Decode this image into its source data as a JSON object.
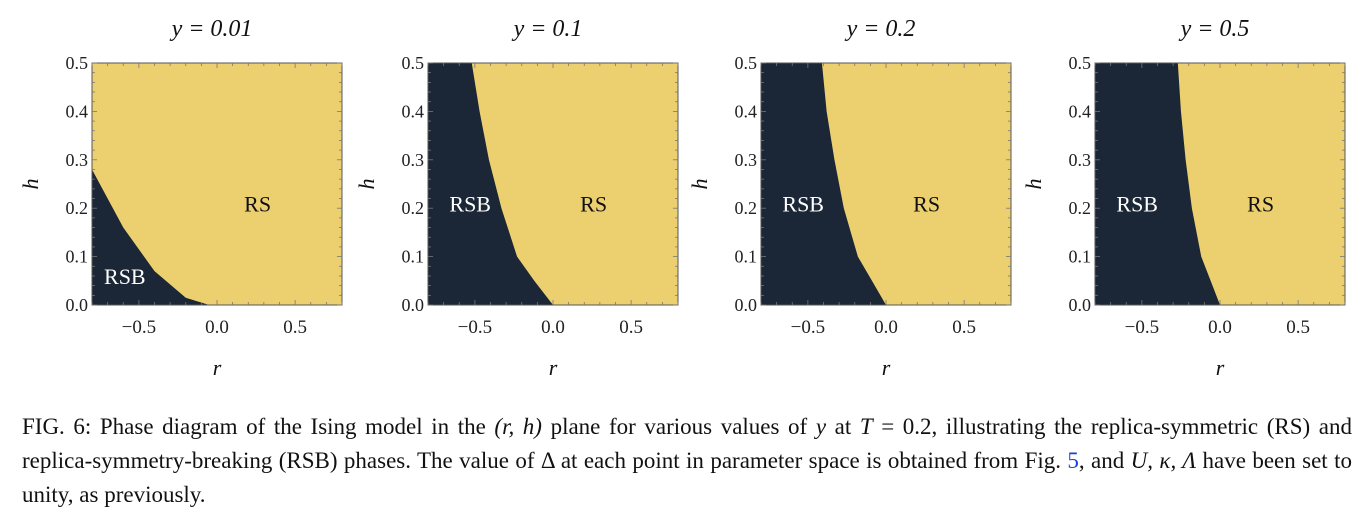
{
  "colors": {
    "RS": "#ecd070",
    "RSB": "#1b2636",
    "axis": "#555555",
    "ref_link": "#1a3fd6"
  },
  "chart_data": [
    {
      "type": "heatmap",
      "title": "y = 0.01",
      "xlabel": "r",
      "ylabel": "h",
      "xlim": [
        -0.8,
        0.8
      ],
      "ylim": [
        0.0,
        0.5
      ],
      "xticks": [
        "−0.5",
        "0.0",
        "0.5"
      ],
      "xtick_values": [
        -0.5,
        0.0,
        0.5
      ],
      "yticks": [
        "0.0",
        "0.1",
        "0.2",
        "0.3",
        "0.4",
        "0.5"
      ],
      "ytick_values": [
        0.0,
        0.1,
        0.2,
        0.3,
        0.4,
        0.5
      ],
      "regions": [
        {
          "label": "RSB",
          "side": "left",
          "label_r": -0.59,
          "label_h": 0.06
        },
        {
          "label": "RS",
          "side": "right",
          "label_r": 0.26,
          "label_h": 0.21
        }
      ],
      "boundary": [
        {
          "r": -0.8,
          "h": 0.28
        },
        {
          "r": -0.6,
          "h": 0.16
        },
        {
          "r": -0.4,
          "h": 0.07
        },
        {
          "r": -0.2,
          "h": 0.015
        },
        {
          "r": -0.05,
          "h": 0.0
        }
      ]
    },
    {
      "type": "heatmap",
      "title": "y = 0.1",
      "xlabel": "r",
      "ylabel": "h",
      "xlim": [
        -0.8,
        0.8
      ],
      "ylim": [
        0.0,
        0.5
      ],
      "xticks": [
        "−0.5",
        "0.0",
        "0.5"
      ],
      "xtick_values": [
        -0.5,
        0.0,
        0.5
      ],
      "yticks": [
        "0.0",
        "0.1",
        "0.2",
        "0.3",
        "0.4",
        "0.5"
      ],
      "ytick_values": [
        0.0,
        0.1,
        0.2,
        0.3,
        0.4,
        0.5
      ],
      "regions": [
        {
          "label": "RSB",
          "side": "left",
          "label_r": -0.53,
          "label_h": 0.21
        },
        {
          "label": "RS",
          "side": "right",
          "label_r": 0.26,
          "label_h": 0.21
        }
      ],
      "boundary": [
        {
          "r": -0.0,
          "h": 0.0
        },
        {
          "r": -0.12,
          "h": 0.05
        },
        {
          "r": -0.23,
          "h": 0.1
        },
        {
          "r": -0.33,
          "h": 0.2
        },
        {
          "r": -0.41,
          "h": 0.3
        },
        {
          "r": -0.47,
          "h": 0.4
        },
        {
          "r": -0.52,
          "h": 0.5
        }
      ]
    },
    {
      "type": "heatmap",
      "title": "y = 0.2",
      "xlabel": "r",
      "ylabel": "h",
      "xlim": [
        -0.8,
        0.8
      ],
      "ylim": [
        0.0,
        0.5
      ],
      "xticks": [
        "−0.5",
        "0.0",
        "0.5"
      ],
      "xtick_values": [
        -0.5,
        0.0,
        0.5
      ],
      "yticks": [
        "0.0",
        "0.1",
        "0.2",
        "0.3",
        "0.4",
        "0.5"
      ],
      "ytick_values": [
        0.0,
        0.1,
        0.2,
        0.3,
        0.4,
        0.5
      ],
      "regions": [
        {
          "label": "RSB",
          "side": "left",
          "label_r": -0.53,
          "label_h": 0.21
        },
        {
          "label": "RS",
          "side": "right",
          "label_r": 0.26,
          "label_h": 0.21
        }
      ],
      "boundary": [
        {
          "r": -0.0,
          "h": 0.0
        },
        {
          "r": -0.09,
          "h": 0.05
        },
        {
          "r": -0.18,
          "h": 0.1
        },
        {
          "r": -0.27,
          "h": 0.2
        },
        {
          "r": -0.33,
          "h": 0.3
        },
        {
          "r": -0.38,
          "h": 0.4
        },
        {
          "r": -0.41,
          "h": 0.5
        }
      ]
    },
    {
      "type": "heatmap",
      "title": "y = 0.5",
      "xlabel": "r",
      "ylabel": "h",
      "xlim": [
        -0.8,
        0.8
      ],
      "ylim": [
        0.0,
        0.5
      ],
      "xticks": [
        "−0.5",
        "0.0",
        "0.5"
      ],
      "xtick_values": [
        -0.5,
        0.0,
        0.5
      ],
      "yticks": [
        "0.0",
        "0.1",
        "0.2",
        "0.3",
        "0.4",
        "0.5"
      ],
      "ytick_values": [
        0.0,
        0.1,
        0.2,
        0.3,
        0.4,
        0.5
      ],
      "regions": [
        {
          "label": "RSB",
          "side": "left",
          "label_r": -0.53,
          "label_h": 0.21
        },
        {
          "label": "RS",
          "side": "right",
          "label_r": 0.26,
          "label_h": 0.21
        }
      ],
      "boundary": [
        {
          "r": -0.0,
          "h": 0.0
        },
        {
          "r": -0.06,
          "h": 0.05
        },
        {
          "r": -0.12,
          "h": 0.1
        },
        {
          "r": -0.18,
          "h": 0.2
        },
        {
          "r": -0.22,
          "h": 0.3
        },
        {
          "r": -0.25,
          "h": 0.4
        },
        {
          "r": -0.27,
          "h": 0.5
        }
      ]
    }
  ],
  "caption": {
    "fig_label": "FIG. 6:",
    "text_1": " Phase diagram of the Ising model in the ",
    "math_1": "(r, h)",
    "text_2": " plane for various values of ",
    "math_2": "y",
    "text_3": " at ",
    "math_3": "T",
    "text_4": " = 0.2, illustrating the replica-symmetric (RS) and replica-symmetry-breaking (RSB) phases. The value of ",
    "math_4": "Δ",
    "text_5": " at each point in parameter space is obtained from Fig. ",
    "ref": "5",
    "text_6": ", and ",
    "math_5": "U, κ, Λ",
    "text_7": " have been set to unity, as previously."
  }
}
